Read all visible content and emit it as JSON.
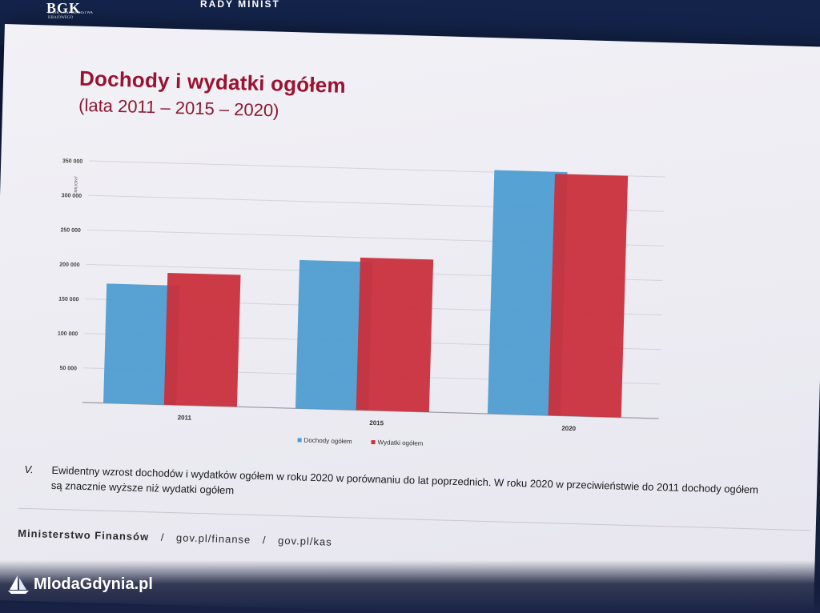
{
  "banner": {
    "logo_mark": "BGK",
    "logo_sub": "BANK GOSPODARSTWA KRAJOWEGO",
    "title": "RADY MINIST"
  },
  "slide": {
    "title": "Dochody i wydatki ogółem",
    "subtitle": "(lata 2011 – 2015 – 2020)",
    "note_number": "V.",
    "note_text": "Ewidentny wzrost dochodów i wydatków ogółem w roku 2020 w porównaniu do lat poprzednich. W roku 2020 w przeciwieństwie do 2011 dochody ogółem są znacznie wyższe niż wydatki ogółem",
    "footer": {
      "ministry": "Ministerstwo Finansów",
      "link1": "gov.pl/finanse",
      "link2": "gov.pl/kas",
      "sep": "/"
    }
  },
  "watermark": {
    "text": "MlodaGdynia.pl"
  },
  "colors": {
    "income": "#4a9bd0",
    "expense": "#c9303c",
    "title": "#9b1230"
  },
  "chart_data": {
    "type": "bar",
    "categories": [
      "2011",
      "2015",
      "2020"
    ],
    "series": [
      {
        "name": "Dochody ogółem",
        "values": [
          173000,
          215000,
          353000
        ]
      },
      {
        "name": "Wydatki ogółem",
        "values": [
          191000,
          221000,
          350000
        ]
      }
    ],
    "ylabel": "MILIONY",
    "ylim": [
      0,
      350000
    ],
    "yticks": [
      50000,
      100000,
      150000,
      200000,
      250000,
      300000,
      350000
    ],
    "ytick_labels": [
      "50 000",
      "100 000",
      "150 000",
      "200 000",
      "250 000",
      "300 000",
      "350 000"
    ],
    "grid": true,
    "legend_position": "bottom"
  }
}
